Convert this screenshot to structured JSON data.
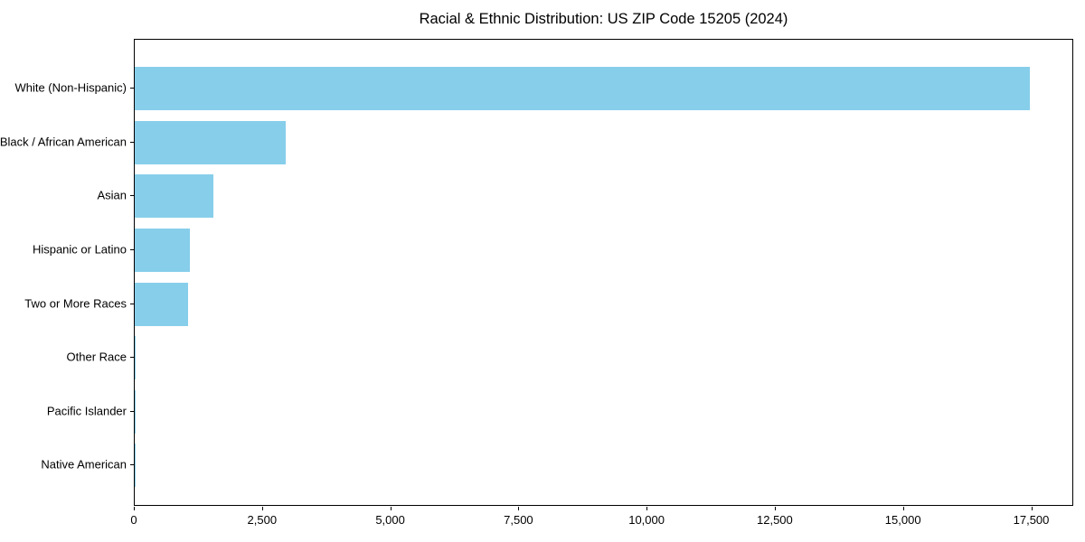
{
  "page": {
    "background_color": "#ffffff",
    "text_color": "#000000"
  },
  "chart_data": {
    "type": "bar",
    "orientation": "horizontal",
    "title": "Racial & Ethnic Distribution: US ZIP Code 15205 (2024)",
    "xlabel": "",
    "ylabel": "",
    "categories": [
      "White (Non-Hispanic)",
      "Black / African American",
      "Asian",
      "Hispanic or Latino",
      "Two or More Races",
      "Other Race",
      "Pacific Islander",
      "Native American"
    ],
    "values": [
      17450,
      2950,
      1530,
      1070,
      1040,
      20,
      4,
      8
    ],
    "bar_color": "#87CEEB",
    "xlim": [
      0,
      18320
    ],
    "xticks": [
      0,
      2500,
      5000,
      7500,
      10000,
      12500,
      15000,
      17500
    ],
    "xtick_labels": [
      "0",
      "2,500",
      "5,000",
      "7,500",
      "10,000",
      "12,500",
      "15,000",
      "17,500"
    ],
    "grid": false,
    "legend_position": "none"
  }
}
